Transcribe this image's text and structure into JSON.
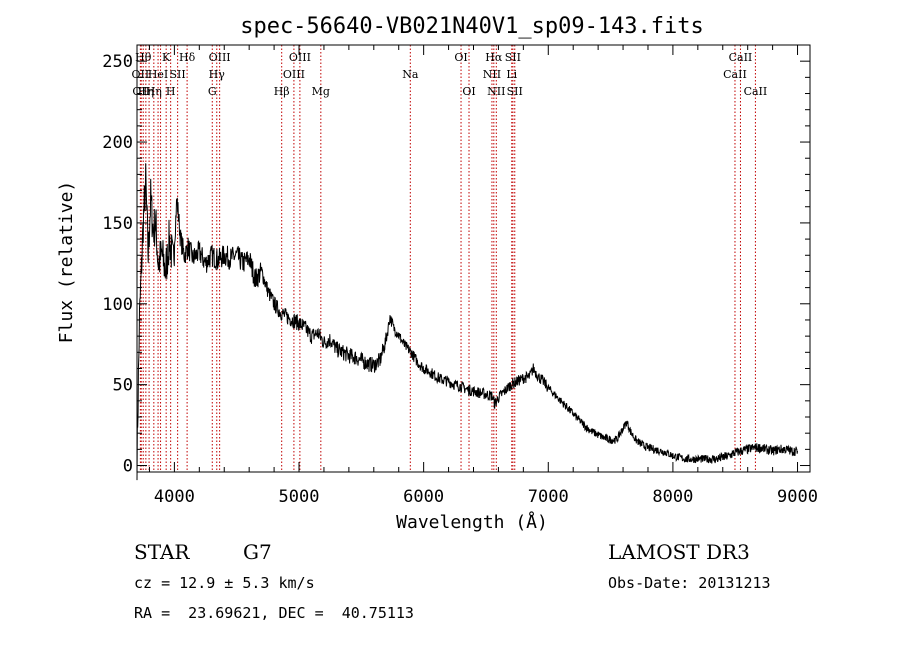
{
  "chart_data": {
    "type": "line",
    "title": "spec-56640-VB021N40V1_sp09-143.fits",
    "xlabel": "Wavelength (Å)",
    "ylabel": "Flux (relative)",
    "xlim": [
      3700,
      9100
    ],
    "ylim": [
      -4,
      260
    ],
    "xticks": [
      4000,
      5000,
      6000,
      7000,
      8000,
      9000
    ],
    "yticks": [
      0,
      50,
      100,
      150,
      200,
      250
    ],
    "series": [
      {
        "name": "flux",
        "x": [
          3700,
          3720,
          3750,
          3770,
          3790,
          3810,
          3830,
          3850,
          3870,
          3900,
          3930,
          3960,
          3990,
          4020,
          4050,
          4080,
          4110,
          4150,
          4200,
          4250,
          4300,
          4350,
          4400,
          4450,
          4500,
          4550,
          4600,
          4650,
          4700,
          4750,
          4800,
          4850,
          4900,
          4950,
          5000,
          5050,
          5100,
          5150,
          5200,
          5250,
          5300,
          5350,
          5400,
          5450,
          5500,
          5550,
          5600,
          5650,
          5700,
          5730,
          5760,
          5790,
          5820,
          5850,
          5900,
          5950,
          6000,
          6050,
          6100,
          6150,
          6200,
          6250,
          6300,
          6350,
          6400,
          6450,
          6500,
          6550,
          6570,
          6600,
          6650,
          6700,
          6750,
          6800,
          6850,
          6880,
          6920,
          6960,
          7000,
          7050,
          7100,
          7150,
          7200,
          7250,
          7300,
          7350,
          7400,
          7450,
          7500,
          7550,
          7600,
          7630,
          7660,
          7700,
          7750,
          7800,
          7850,
          7900,
          7950,
          8000,
          8050,
          8100,
          8150,
          8200,
          8250,
          8300,
          8350,
          8400,
          8450,
          8500,
          8550,
          8600,
          8650,
          8700,
          8750,
          8800,
          8850,
          8900,
          8950,
          9000
        ],
        "values": [
          5,
          90,
          150,
          175,
          130,
          165,
          145,
          150,
          125,
          130,
          120,
          140,
          125,
          165,
          140,
          130,
          135,
          128,
          132,
          125,
          130,
          127,
          130,
          128,
          130,
          125,
          128,
          115,
          120,
          108,
          100,
          95,
          92,
          90,
          88,
          85,
          80,
          82,
          76,
          78,
          72,
          70,
          68,
          67,
          65,
          63,
          62,
          65,
          78,
          92,
          85,
          82,
          78,
          74,
          70,
          64,
          60,
          58,
          55,
          53,
          52,
          50,
          49,
          47,
          46,
          45,
          44,
          43,
          38,
          42,
          46,
          50,
          52,
          54,
          55,
          60,
          55,
          52,
          48,
          44,
          40,
          36,
          32,
          28,
          24,
          21,
          19,
          17,
          16,
          16,
          23,
          27,
          21,
          16,
          13,
          11,
          10,
          9,
          8,
          6,
          5,
          4,
          4,
          4,
          4,
          4,
          4,
          5,
          6,
          8,
          9,
          10,
          11,
          11,
          10,
          9,
          10,
          10,
          9,
          9
        ]
      }
    ],
    "lines": [
      {
        "wave": 3727,
        "labels": [
          "OII"
        ],
        "row": 1
      },
      {
        "wave": 3734,
        "labels": [
          "OII"
        ],
        "row": 2
      },
      {
        "wave": 3750,
        "labels": [
          "Hθ"
        ],
        "row": 0
      },
      {
        "wave": 3771,
        "labels": [
          "Hη"
        ],
        "row": 2
      },
      {
        "wave": 3797,
        "labels": [],
        "row": 0
      },
      {
        "wave": 3835,
        "labels": [
          "Hη"
        ],
        "row": 2
      },
      {
        "wave": 3869,
        "labels": [
          "HeI"
        ],
        "row": 1
      },
      {
        "wave": 3889,
        "labels": [],
        "row": 0
      },
      {
        "wave": 3934,
        "labels": [
          "K"
        ],
        "row": 0
      },
      {
        "wave": 3970,
        "labels": [
          "H"
        ],
        "row": 2
      },
      {
        "wave": 4026,
        "labels": [
          "SII"
        ],
        "row": 1
      },
      {
        "wave": 4102,
        "labels": [
          "Hδ"
        ],
        "row": 0
      },
      {
        "wave": 4304,
        "labels": [
          "G"
        ],
        "row": 2
      },
      {
        "wave": 4340,
        "labels": [
          "Hγ"
        ],
        "row": 1
      },
      {
        "wave": 4363,
        "labels": [
          "OIII"
        ],
        "row": 0
      },
      {
        "wave": 4861,
        "labels": [
          "Hβ"
        ],
        "row": 2
      },
      {
        "wave": 4959,
        "labels": [
          "OIII"
        ],
        "row": 1
      },
      {
        "wave": 5007,
        "labels": [
          "OIII"
        ],
        "row": 0
      },
      {
        "wave": 5175,
        "labels": [
          "Mg"
        ],
        "row": 2
      },
      {
        "wave": 5893,
        "labels": [
          "Na"
        ],
        "row": 1
      },
      {
        "wave": 6300,
        "labels": [
          "OI"
        ],
        "row": 0
      },
      {
        "wave": 6364,
        "labels": [
          "OI"
        ],
        "row": 2
      },
      {
        "wave": 6548,
        "labels": [
          "NII"
        ],
        "row": 1
      },
      {
        "wave": 6563,
        "labels": [
          "Hα"
        ],
        "row": 0
      },
      {
        "wave": 6583,
        "labels": [
          "NII"
        ],
        "row": 2
      },
      {
        "wave": 6707,
        "labels": [
          "Li"
        ],
        "row": 1
      },
      {
        "wave": 6716,
        "labels": [
          "SII"
        ],
        "row": 0
      },
      {
        "wave": 6731,
        "labels": [
          "SII"
        ],
        "row": 2
      },
      {
        "wave": 8498,
        "labels": [
          "CaII"
        ],
        "row": 1
      },
      {
        "wave": 8542,
        "labels": [
          "CaII"
        ],
        "row": 0
      },
      {
        "wave": 8662,
        "labels": [
          "CaII"
        ],
        "row": 2
      }
    ],
    "line_color": "#c00000"
  },
  "info": {
    "class_label": "STAR",
    "subclass_label": "G7",
    "survey": "LAMOST DR3",
    "redshift": "cz = 12.9 ± 5.3 km/s",
    "obs_date": "Obs-Date: 20131213",
    "coords": "RA =  23.69621, DEC =  40.75113"
  }
}
